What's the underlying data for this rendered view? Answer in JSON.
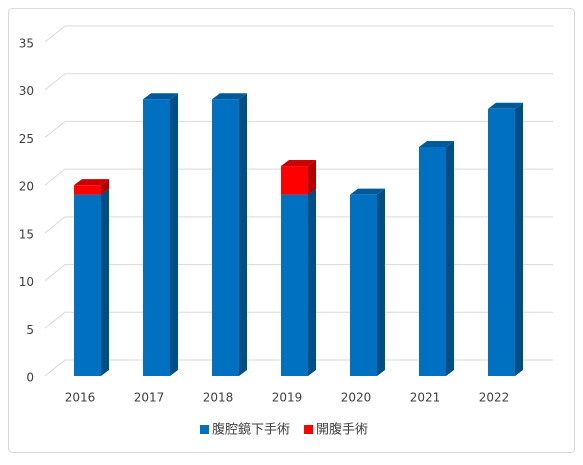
{
  "chart_data": {
    "type": "bar",
    "stacked": true,
    "three_d": true,
    "categories": [
      "2016",
      "2017",
      "2018",
      "2019",
      "2020",
      "2021",
      "2022"
    ],
    "series": [
      {
        "name": "腹腔鏡下手術",
        "color": "#0070c0",
        "values": [
          19,
          29,
          29,
          19,
          19,
          24,
          28
        ]
      },
      {
        "name": "開腹手術",
        "color": "#ff0000",
        "values": [
          1,
          0,
          0,
          3,
          0,
          0,
          0
        ]
      }
    ],
    "ylim": [
      0,
      35
    ],
    "yticks": [
      0,
      5,
      10,
      15,
      20,
      25,
      30,
      35
    ],
    "grid": true,
    "legend": "bottom"
  }
}
